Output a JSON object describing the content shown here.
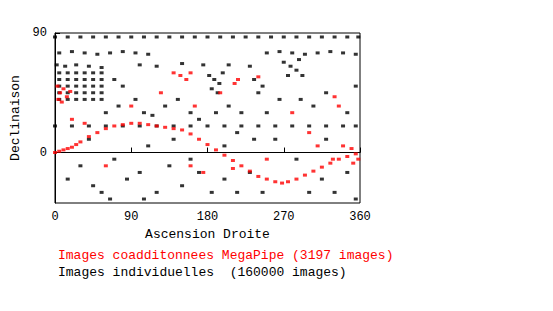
{
  "chart_data": {
    "type": "scatter",
    "x_label": "Ascension Droite",
    "y_label": "Declinaison",
    "xlim": [
      0,
      360
    ],
    "xticks": [
      0,
      90,
      180,
      270,
      360
    ],
    "ylim": [
      -38,
      90
    ],
    "yticks": [
      0,
      90
    ],
    "grid": false,
    "legend": "bottom-left",
    "marker": "square",
    "series": [
      {
        "name": "Images coadditonnees MegaPipe (3197 images)",
        "color": "#ff0000",
        "values": [
          [
            0,
            0
          ],
          [
            5,
            1
          ],
          [
            10,
            2
          ],
          [
            15,
            3
          ],
          [
            20,
            4
          ],
          [
            25,
            6
          ],
          [
            30,
            8
          ],
          [
            40,
            12
          ],
          [
            50,
            15
          ],
          [
            60,
            18
          ],
          [
            70,
            20
          ],
          [
            80,
            21
          ],
          [
            90,
            22
          ],
          [
            100,
            22
          ],
          [
            110,
            21
          ],
          [
            120,
            20
          ],
          [
            130,
            19
          ],
          [
            140,
            18
          ],
          [
            150,
            17
          ],
          [
            160,
            14
          ],
          [
            170,
            10
          ],
          [
            180,
            6
          ],
          [
            190,
            2
          ],
          [
            200,
            -2
          ],
          [
            210,
            -6
          ],
          [
            220,
            -10
          ],
          [
            230,
            -14
          ],
          [
            240,
            -18
          ],
          [
            250,
            -20
          ],
          [
            260,
            -22
          ],
          [
            268,
            -23
          ],
          [
            275,
            -22
          ],
          [
            285,
            -20
          ],
          [
            295,
            -17
          ],
          [
            305,
            -14
          ],
          [
            315,
            -11
          ],
          [
            325,
            -8
          ],
          [
            335,
            -5
          ],
          [
            345,
            -3
          ],
          [
            355,
            -1
          ],
          [
            3,
            50
          ],
          [
            6,
            45
          ],
          [
            10,
            48
          ],
          [
            14,
            42
          ],
          [
            18,
            46
          ],
          [
            8,
            38
          ],
          [
            4,
            40
          ],
          [
            20,
            25
          ],
          [
            35,
            22
          ],
          [
            140,
            60
          ],
          [
            148,
            58
          ],
          [
            155,
            55
          ],
          [
            160,
            60
          ],
          [
            212,
            52
          ],
          [
            216,
            55
          ],
          [
            240,
            57
          ],
          [
            195,
            45
          ],
          [
            125,
            45
          ],
          [
            165,
            35
          ],
          [
            330,
            42
          ],
          [
            335,
            35
          ],
          [
            328,
            -5
          ],
          [
            340,
            5
          ],
          [
            350,
            3
          ],
          [
            358,
            -5
          ],
          [
            352,
            -8
          ],
          [
            300,
            15
          ],
          [
            310,
            5
          ],
          [
            280,
            30
          ],
          [
            250,
            -5
          ],
          [
            210,
            -12
          ],
          [
            60,
            -10
          ],
          [
            160,
            -10
          ],
          [
            175,
            -15
          ],
          [
            90,
            35
          ]
        ]
      },
      {
        "name": "Images individuelles  (160000 images)",
        "color": "#000000",
        "values": [
          [
            0,
            87
          ],
          [
            15,
            87
          ],
          [
            30,
            87
          ],
          [
            45,
            87
          ],
          [
            60,
            87
          ],
          [
            75,
            87
          ],
          [
            90,
            87
          ],
          [
            105,
            87
          ],
          [
            120,
            87
          ],
          [
            135,
            87
          ],
          [
            150,
            87
          ],
          [
            165,
            87
          ],
          [
            180,
            87
          ],
          [
            195,
            87
          ],
          [
            210,
            87
          ],
          [
            225,
            87
          ],
          [
            240,
            87
          ],
          [
            255,
            87
          ],
          [
            270,
            87
          ],
          [
            285,
            87
          ],
          [
            300,
            87
          ],
          [
            315,
            87
          ],
          [
            330,
            87
          ],
          [
            345,
            87
          ],
          [
            358,
            87
          ],
          [
            5,
            75
          ],
          [
            20,
            76
          ],
          [
            35,
            75
          ],
          [
            50,
            74
          ],
          [
            65,
            75
          ],
          [
            80,
            76
          ],
          [
            95,
            75
          ],
          [
            110,
            74
          ],
          [
            250,
            75
          ],
          [
            265,
            76
          ],
          [
            280,
            75
          ],
          [
            295,
            74
          ],
          [
            310,
            75
          ],
          [
            325,
            76
          ],
          [
            340,
            75
          ],
          [
            355,
            74
          ],
          [
            2,
            66
          ],
          [
            12,
            65
          ],
          [
            25,
            66
          ],
          [
            40,
            65
          ],
          [
            55,
            64
          ],
          [
            100,
            66
          ],
          [
            120,
            65
          ],
          [
            150,
            67
          ],
          [
            175,
            66
          ],
          [
            205,
            66
          ],
          [
            230,
            65
          ],
          [
            5,
            60
          ],
          [
            15,
            60
          ],
          [
            25,
            60
          ],
          [
            35,
            60
          ],
          [
            45,
            60
          ],
          [
            55,
            60
          ],
          [
            5,
            55
          ],
          [
            15,
            55
          ],
          [
            25,
            55
          ],
          [
            35,
            55
          ],
          [
            45,
            55
          ],
          [
            55,
            55
          ],
          [
            5,
            50
          ],
          [
            15,
            50
          ],
          [
            25,
            50
          ],
          [
            35,
            50
          ],
          [
            45,
            50
          ],
          [
            55,
            50
          ],
          [
            5,
            45
          ],
          [
            15,
            45
          ],
          [
            25,
            45
          ],
          [
            35,
            45
          ],
          [
            45,
            45
          ],
          [
            55,
            45
          ],
          [
            5,
            40
          ],
          [
            15,
            40
          ],
          [
            25,
            40
          ],
          [
            35,
            40
          ],
          [
            45,
            40
          ],
          [
            55,
            40
          ],
          [
            0,
            20
          ],
          [
            20,
            20
          ],
          [
            40,
            20
          ],
          [
            60,
            20
          ],
          [
            80,
            20
          ],
          [
            100,
            20
          ],
          [
            120,
            20
          ],
          [
            140,
            20
          ],
          [
            160,
            20
          ],
          [
            180,
            20
          ],
          [
            200,
            20
          ],
          [
            220,
            20
          ],
          [
            240,
            20
          ],
          [
            260,
            20
          ],
          [
            280,
            20
          ],
          [
            300,
            20
          ],
          [
            320,
            20
          ],
          [
            340,
            20
          ],
          [
            355,
            20
          ],
          [
            182,
            58
          ],
          [
            188,
            55
          ],
          [
            194,
            52
          ],
          [
            185,
            48
          ],
          [
            192,
            45
          ],
          [
            198,
            60
          ],
          [
            270,
            68
          ],
          [
            278,
            65
          ],
          [
            285,
            62
          ],
          [
            292,
            58
          ],
          [
            275,
            58
          ],
          [
            288,
            70
          ],
          [
            235,
            55
          ],
          [
            245,
            50
          ],
          [
            240,
            45
          ],
          [
            30,
            -10
          ],
          [
            45,
            -25
          ],
          [
            55,
            -30
          ],
          [
            70,
            -5
          ],
          [
            85,
            -20
          ],
          [
            100,
            -15
          ],
          [
            110,
            5
          ],
          [
            120,
            -30
          ],
          [
            135,
            -10
          ],
          [
            150,
            -25
          ],
          [
            160,
            -5
          ],
          [
            170,
            -15
          ],
          [
            185,
            -30
          ],
          [
            200,
            -20
          ],
          [
            215,
            -30
          ],
          [
            230,
            -15
          ],
          [
            245,
            -30
          ],
          [
            260,
            10
          ],
          [
            285,
            -5
          ],
          [
            300,
            -30
          ],
          [
            315,
            -20
          ],
          [
            330,
            -30
          ],
          [
            345,
            -15
          ],
          [
            355,
            -35
          ],
          [
            15,
            -20
          ],
          [
            65,
            -35
          ],
          [
            105,
            -35
          ],
          [
            40,
            10
          ],
          [
            60,
            30
          ],
          [
            75,
            35
          ],
          [
            95,
            40
          ],
          [
            105,
            30
          ],
          [
            115,
            28
          ],
          [
            130,
            35
          ],
          [
            145,
            40
          ],
          [
            160,
            30
          ],
          [
            170,
            25
          ],
          [
            190,
            30
          ],
          [
            205,
            35
          ],
          [
            220,
            30
          ],
          [
            235,
            10
          ],
          [
            250,
            30
          ],
          [
            265,
            40
          ],
          [
            290,
            40
          ],
          [
            305,
            35
          ],
          [
            320,
            45
          ],
          [
            345,
            30
          ],
          [
            355,
            50
          ],
          [
            80,
            50
          ],
          [
            70,
            55
          ],
          [
            140,
            10
          ],
          [
            200,
            5
          ],
          [
            215,
            15
          ],
          [
            320,
            10
          ]
        ]
      }
    ]
  }
}
